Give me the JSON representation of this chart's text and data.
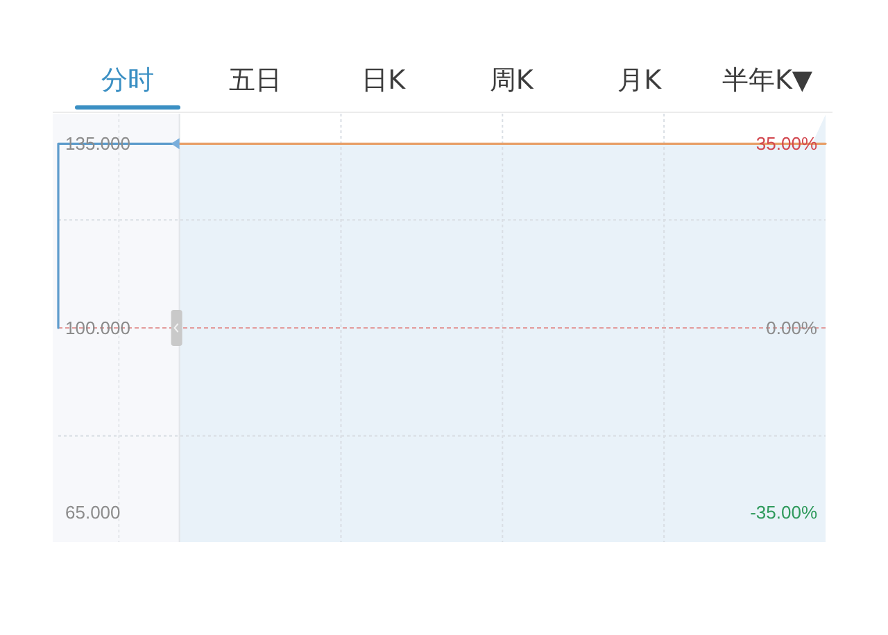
{
  "chart_data": {
    "type": "line",
    "annotations": [
      "分时",
      "五日",
      "日K",
      "周K",
      "月K",
      "半年K▼"
    ],
    "categories": [
      null,
      null,
      null,
      null,
      null,
      null,
      null,
      null,
      null,
      null,
      null,
      null,
      null,
      null,
      null,
      null,
      null,
      null,
      null,
      null,
      null,
      null,
      null,
      null,
      null,
      null,
      null,
      null,
      null,
      null,
      null,
      null,
      null,
      null,
      null,
      null,
      null,
      null,
      null,
      null,
      null,
      null,
      null,
      null,
      null,
      null,
      null,
      null,
      null,
      null,
      null,
      null,
      null,
      null,
      null,
      null,
      null,
      null
    ],
    "series": [
      {
        "type": "step",
        "color": "#5e9ccc",
        "values": [
          100,
          135,
          135,
          135,
          135,
          135,
          135,
          135,
          135,
          135,
          null,
          null,
          null,
          null,
          null,
          null,
          null,
          null,
          null,
          null,
          null,
          null,
          null,
          null,
          null,
          null,
          null,
          null,
          null,
          null,
          null,
          null,
          null,
          null,
          null,
          null,
          null,
          null,
          null,
          null,
          null,
          null,
          null,
          null,
          null,
          null,
          null,
          null,
          null,
          null,
          null,
          null,
          null,
          null,
          null,
          null,
          null,
          null
        ]
      },
      {
        "type": "area",
        "color": "#e9f2f9",
        "values": [
          null,
          null,
          null,
          null,
          null,
          null,
          null,
          null,
          null,
          135,
          135,
          135,
          135,
          135,
          135,
          135,
          135,
          135,
          135,
          135,
          135,
          135,
          135,
          135,
          135,
          135,
          135,
          135,
          135,
          135,
          135,
          135,
          135,
          135,
          135,
          135,
          135,
          135,
          135,
          135,
          135,
          135,
          135,
          135,
          135,
          135,
          135,
          135,
          135,
          135,
          135,
          135,
          135,
          135,
          135,
          135,
          135,
          140.5
        ]
      },
      {
        "color": "#e8a06a",
        "values": [
          null,
          null,
          null,
          null,
          null,
          null,
          null,
          null,
          null,
          135,
          135,
          135,
          135,
          135,
          135,
          135,
          135,
          135,
          135,
          135,
          135,
          135,
          135,
          135,
          135,
          135,
          135,
          135,
          135,
          135,
          135,
          135,
          135,
          135,
          135,
          135,
          135,
          135,
          135,
          135,
          135,
          135,
          135,
          135,
          135,
          135,
          135,
          135,
          135,
          135,
          135,
          135,
          135,
          135,
          135,
          135,
          135,
          135
        ]
      }
    ],
    "ylim": [
      59.3,
      140.7
    ],
    "yticks": [
      {
        "value": 135,
        "label": "135.000"
      },
      {
        "value": 120.5,
        "label": null
      },
      {
        "value": 100,
        "label": "100.000"
      },
      {
        "value": 79.5,
        "label": null
      },
      {
        "value": 65,
        "label": "65.000"
      }
    ],
    "y2lim": [
      -40.7,
      40.7
    ],
    "y2ticks": [
      {
        "value": 35,
        "label": "35.00%"
      },
      {
        "value": 0,
        "label": "0.00%"
      },
      {
        "value": -35,
        "label": "-35.00%"
      }
    ],
    "ref_lines": [
      {
        "axis": "y",
        "value": 100,
        "color": "#e39b9b",
        "line_style": "dashed"
      }
    ],
    "grid": true
  }
}
